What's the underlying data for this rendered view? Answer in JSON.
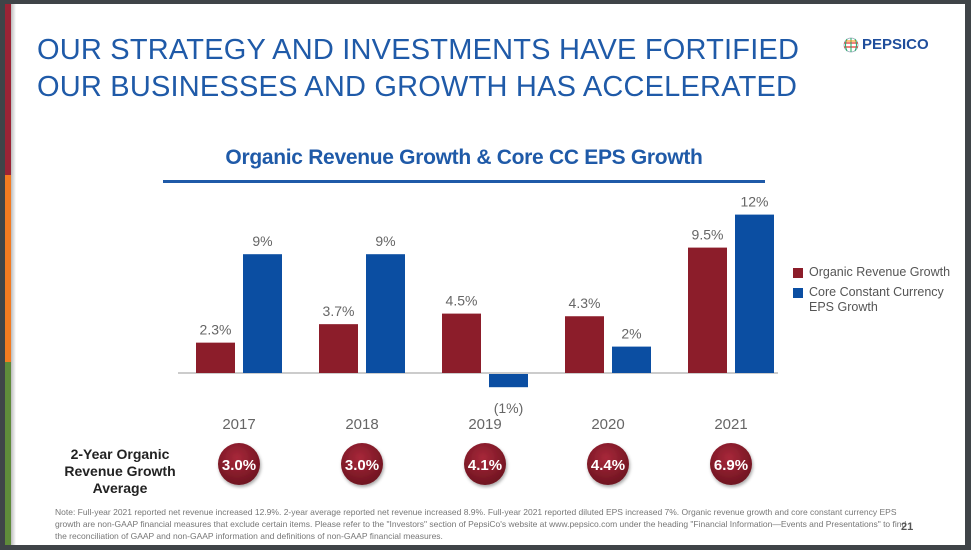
{
  "title_lines": [
    "OUR STRATEGY AND INVESTMENTS HAVE FORTIFIED",
    "OUR BUSINESSES AND GROWTH HAS ACCELERATED"
  ],
  "logo": {
    "text": "PEPSICO",
    "icon": "pepsico-globe-icon"
  },
  "colors": {
    "organic": "#8c1d2a",
    "eps": "#0b4ea2",
    "title": "#1f5aa8",
    "strip_red": "#9b2335",
    "strip_orange": "#f47b20",
    "strip_green": "#5f8b3a"
  },
  "chart_data": {
    "type": "bar",
    "title": "Organic Revenue Growth & Core CC EPS Growth",
    "categories": [
      "2017",
      "2018",
      "2019",
      "2020",
      "2021"
    ],
    "series": [
      {
        "name": "Organic Revenue Growth",
        "values": [
          2.3,
          3.7,
          4.5,
          4.3,
          9.5
        ],
        "labels": [
          "2.3%",
          "3.7%",
          "4.5%",
          "4.3%",
          "9.5%"
        ]
      },
      {
        "name": "Core Constant Currency EPS Growth",
        "values": [
          9,
          9,
          -1,
          2,
          12
        ],
        "labels": [
          "9%",
          "9%",
          "(1%)",
          "2%",
          "12%"
        ]
      }
    ],
    "legend_position": "right",
    "grid": false,
    "ylim": [
      -2,
      13
    ]
  },
  "legend": {
    "organic": "Organic Revenue Growth",
    "eps_line1": "Core Constant Currency",
    "eps_line2": "EPS Growth"
  },
  "average": {
    "label_lines": [
      "2-Year Organic",
      "Revenue Growth",
      "Average"
    ],
    "values": [
      "3.0%",
      "3.0%",
      "4.1%",
      "4.4%",
      "6.9%"
    ]
  },
  "note": "Note: Full-year 2021 reported net revenue increased 12.9%. 2-year average reported net revenue increased 8.9%. Full-year 2021 reported diluted EPS increased 7%. Organic revenue growth and core constant currency EPS growth are non-GAAP financial measures that exclude certain items. Please refer to the \"Investors\" section of PepsiCo's website at www.pepsico.com under the heading \"Financial Information—Events and Presentations\" to find the reconciliation of GAAP and non-GAAP information and definitions of non-GAAP financial measures.",
  "page_number": "21"
}
